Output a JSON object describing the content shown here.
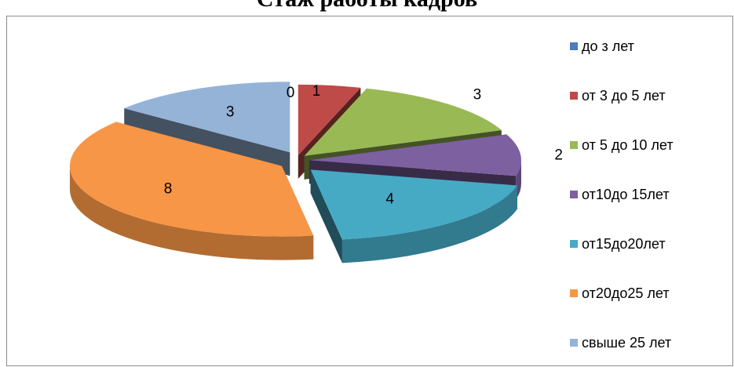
{
  "chart_data": {
    "type": "pie",
    "title": "Стаж работы кадров",
    "style": "3d-exploded",
    "legend_position": "right",
    "categories": [
      "до з лет",
      "от 3 до 5 лет",
      "от 5 до 10 лет",
      "от10до 15лет",
      "от15до20лет",
      "от20до25 лет",
      "свыше 25 лет"
    ],
    "values": [
      0,
      1,
      3,
      2,
      4,
      8,
      3
    ],
    "colors": [
      "#4a7ebb",
      "#be4b48",
      "#98b954",
      "#7d60a0",
      "#46aac5",
      "#f79646",
      "#95b3d7"
    ],
    "data_labels": [
      "0",
      "1",
      "3",
      "2",
      "4",
      "8",
      "3"
    ]
  }
}
